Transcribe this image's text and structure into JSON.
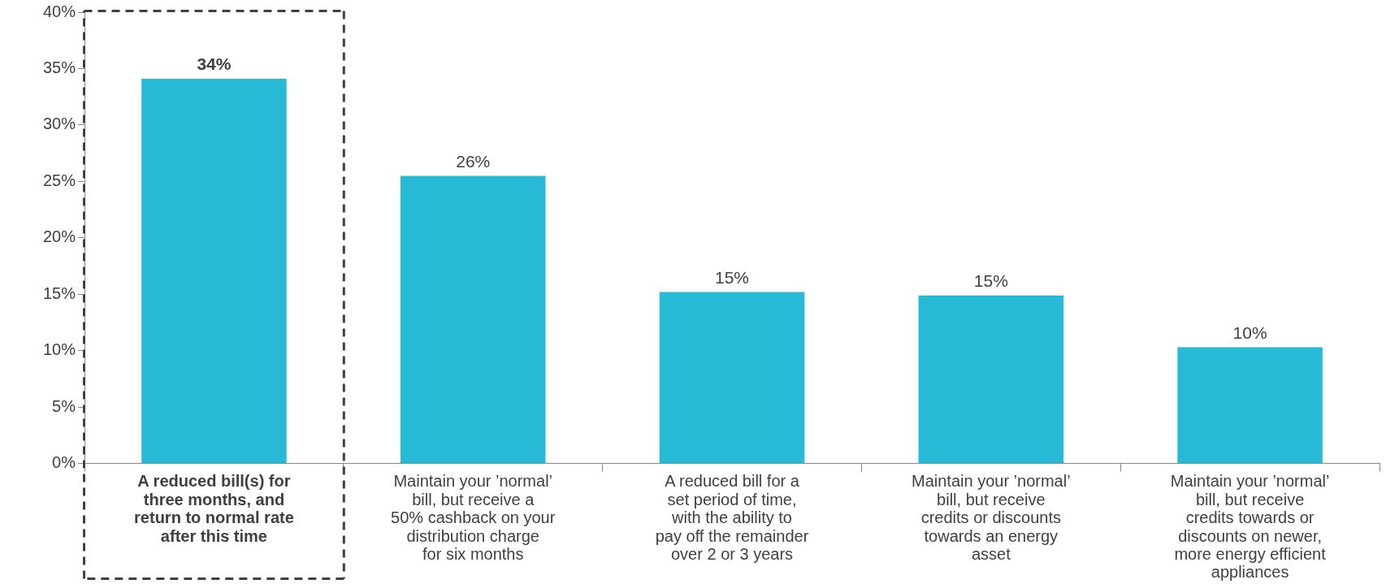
{
  "chart_data": {
    "type": "bar",
    "categories": [
      "A reduced bill(s) for three months, and return to normal rate after this time",
      "Maintain your ’normal’ bill, but receive a 50% cashback on your distribution charge for six months",
      "A reduced bill for a set period of time, with the ability to pay off the remainder over 2 or 3 years",
      "Maintain your ’normal’ bill, but receive credits or discounts towards an energy asset",
      "Maintain your ’normal’ bill, but receive credits towards or discounts on newer, more energy efficient appliances"
    ],
    "values": [
      34.1,
      25.5,
      15.2,
      14.9,
      10.3
    ],
    "value_labels": [
      "34%",
      "26%",
      "15%",
      "15%",
      "10%"
    ],
    "color": "#26bad6",
    "ylim": [
      0,
      40
    ],
    "yticks": [
      {
        "value": 0,
        "label": "0%"
      },
      {
        "value": 5,
        "label": "5%"
      },
      {
        "value": 10,
        "label": "10%"
      },
      {
        "value": 15,
        "label": "15%"
      },
      {
        "value": 20,
        "label": "20%"
      },
      {
        "value": 25,
        "label": "25%"
      },
      {
        "value": 30,
        "label": "30%"
      },
      {
        "value": 35,
        "label": "35%"
      },
      {
        "value": 40,
        "label": "40%"
      }
    ],
    "grid": false,
    "legend": false
  }
}
